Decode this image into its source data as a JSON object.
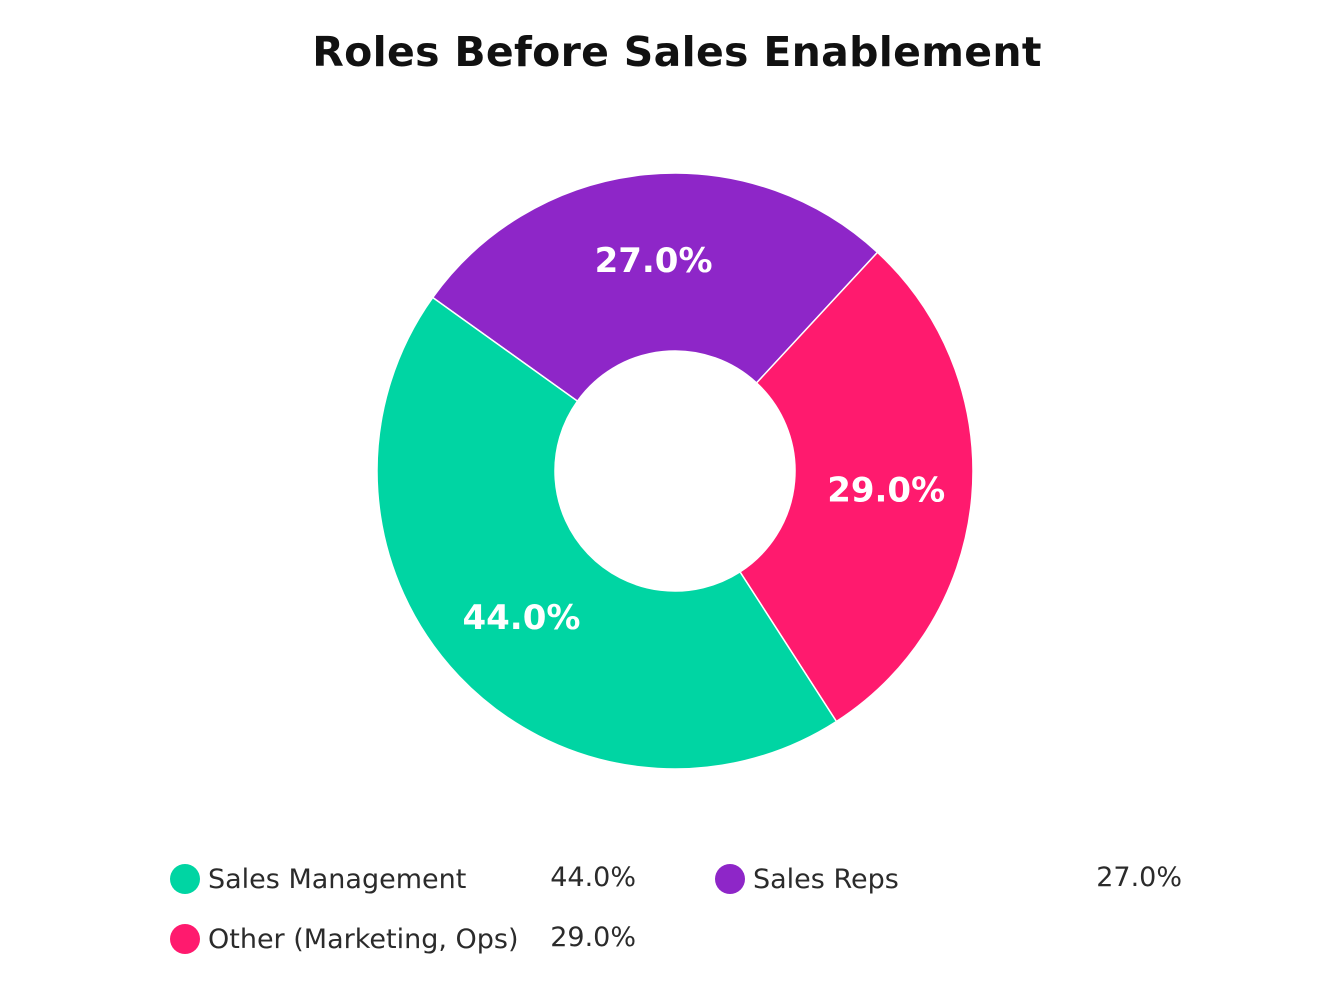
{
  "title": "Roles Before Sales Enablement",
  "chart_data": {
    "type": "pie",
    "variant": "donut",
    "title": "Roles Before Sales Enablement",
    "categories": [
      "Sales Reps",
      "Other (Marketing, Ops)",
      "Sales Management"
    ],
    "values": [
      27.0,
      29.0,
      44.0
    ],
    "labels": [
      "27.0%",
      "29.0%",
      "44.0%"
    ],
    "colors": [
      "#8e26c8",
      "#ff1a6e",
      "#00d5a3"
    ],
    "legend_position": "bottom"
  },
  "legend": [
    {
      "label": "Sales Management",
      "value": "44.0%",
      "color": "#00d5a3"
    },
    {
      "label": "Sales Reps",
      "value": "27.0%",
      "color": "#8e26c8"
    },
    {
      "label": "Other (Marketing, Ops)",
      "value": "29.0%",
      "color": "#ff1a6e"
    }
  ]
}
